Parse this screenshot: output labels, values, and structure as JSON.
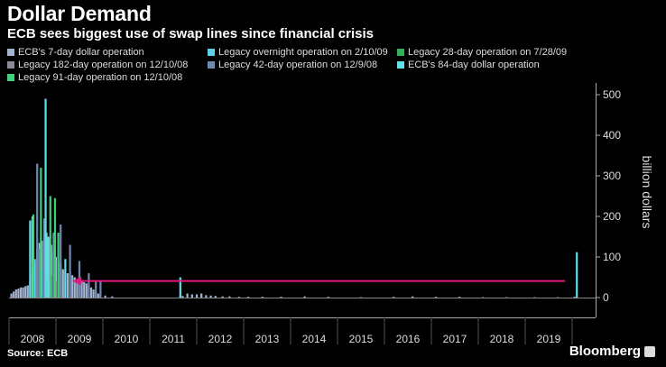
{
  "header": {
    "title": "Dollar Demand",
    "subtitle": "ECB sees biggest use of swap lines since financial crisis"
  },
  "footer": {
    "source": "Source: ECB",
    "brand": "Bloomberg"
  },
  "chart_data": {
    "type": "bar",
    "title": "Dollar Demand",
    "subtitle": "ECB sees biggest use of swap lines since financial crisis",
    "ylabel": "billion dollars",
    "ylim": [
      0,
      520
    ],
    "yticks": [
      0,
      100,
      200,
      300,
      400,
      500
    ],
    "xlim": [
      2008.0,
      2020.5
    ],
    "xticks": [
      "2008",
      "2009",
      "2010",
      "2011",
      "2012",
      "2013",
      "2014",
      "2015",
      "2016",
      "2017",
      "2018",
      "2019"
    ],
    "grid": false,
    "legend_position": "top",
    "annotation": {
      "type": "arrow",
      "from_x": 2019.85,
      "to_x": 2009.35,
      "y": 112,
      "color": "#e0197d"
    },
    "series": [
      {
        "name": "ECB's 7-day dollar operation",
        "color": "#a3b4cf",
        "x": [
          2008.05,
          2008.1,
          2008.15,
          2008.2,
          2008.25,
          2008.3,
          2008.35,
          2008.4,
          2008.45,
          2008.5,
          2008.55,
          2008.6,
          2008.65,
          2008.7,
          2008.75,
          2008.8,
          2008.85,
          2008.9,
          2008.95,
          2009.0,
          2009.05,
          2009.1,
          2009.15,
          2009.2,
          2009.25,
          2009.3,
          2009.35,
          2009.4,
          2009.45,
          2009.5,
          2009.55,
          2009.6,
          2009.65,
          2009.7,
          2009.75,
          2009.8,
          2009.85,
          2009.9,
          2009.95,
          2010.05,
          2010.2,
          2011.65,
          2011.7,
          2011.8,
          2011.9,
          2012.0,
          2012.1,
          2012.2,
          2012.3,
          2012.4,
          2012.55,
          2012.7,
          2012.9,
          2013.1,
          2013.4,
          2013.8,
          2014.3,
          2014.8,
          2015.5,
          2016.2,
          2016.6,
          2017.1,
          2017.6,
          2018.1,
          2018.6,
          2019.2,
          2019.7,
          2020.05
        ],
        "values": [
          10,
          15,
          20,
          22,
          25,
          25,
          28,
          30,
          40,
          60,
          90,
          120,
          135,
          140,
          150,
          160,
          150,
          130,
          115,
          100,
          90,
          80,
          70,
          65,
          60,
          60,
          55,
          50,
          45,
          40,
          40,
          38,
          35,
          30,
          25,
          20,
          15,
          10,
          8,
          5,
          3,
          5,
          4,
          10,
          8,
          8,
          10,
          6,
          5,
          4,
          3,
          3,
          2,
          2,
          2,
          2,
          3,
          2,
          1,
          2,
          3,
          2,
          2,
          1,
          1,
          1,
          1,
          2
        ]
      },
      {
        "name": "Legacy overnight operation on 2/10/09",
        "color": "#5fd0e8",
        "x": [
          2008.55,
          2008.7
        ],
        "values": [
          95,
          70
        ]
      },
      {
        "name": "Legacy 28-day operation on 7/28/09",
        "color": "#2fb35a",
        "x": [
          2008.9,
          2009.1
        ],
        "values": [
          55,
          85
        ]
      },
      {
        "name": "Legacy 182-day operation on 12/10/08",
        "color": "#8a8d95",
        "x": [
          2008.8,
          2009.0
        ],
        "values": [
          45,
          40
        ]
      },
      {
        "name": "Legacy 42-day operation on 12/9/08",
        "color": "#6f87b3",
        "x": [
          2008.6,
          2008.65,
          2008.75,
          2008.95,
          2009.1,
          2009.3,
          2009.5,
          2009.7,
          2009.85,
          2009.95
        ],
        "values": [
          330,
          120,
          195,
          160,
          180,
          130,
          90,
          60,
          40,
          40
        ]
      },
      {
        "name": "ECB's 84-day dollar operation",
        "color": "#5fe0ea",
        "x": [
          2008.45,
          2008.5,
          2008.78,
          2008.83,
          2009.2,
          2011.65,
          2020.1
        ],
        "values": [
          190,
          200,
          490,
          150,
          95,
          50,
          112
        ]
      },
      {
        "name": "Legacy 91-day operation on 12/10/08",
        "color": "#3ed07a",
        "x": [
          2008.52,
          2008.68,
          2008.88,
          2008.98,
          2009.05
        ],
        "values": [
          205,
          320,
          250,
          245,
          160
        ]
      }
    ]
  }
}
